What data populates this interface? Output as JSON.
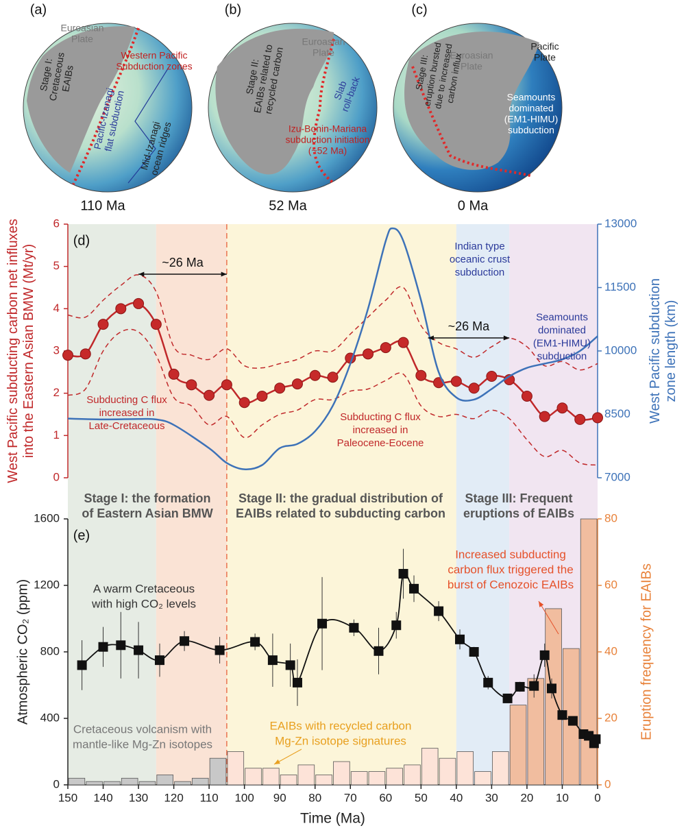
{
  "globes": [
    {
      "panel": "(a)",
      "age": "110 Ma",
      "labels": [
        [
          "Euroasian",
          "Plate"
        ],
        [
          "Stage I:",
          "Cretaceous",
          "EAIBs"
        ],
        [
          "Western Pacific",
          "Subduction zones"
        ],
        [
          "Pacific-Izanagi",
          "flat subduction"
        ],
        [
          "Mid-Izanagi",
          "ocean ridges"
        ]
      ]
    },
    {
      "panel": "(b)",
      "age": "52 Ma",
      "labels": [
        [
          "Euroasian",
          "Plate"
        ],
        [
          "Stage II:",
          "EAIBs related to",
          "recycled carbon"
        ],
        [
          "Slab",
          "roll-back"
        ],
        [
          "Izu-Bonin-Mariana",
          "subduction initiation",
          "(~52 Ma)"
        ]
      ]
    },
    {
      "panel": "(c)",
      "age": "0 Ma",
      "labels": [
        [
          "Euroasian",
          "Plate"
        ],
        [
          "Stage III:",
          "eruption bursted",
          "due to increased",
          "carbon influx"
        ],
        [
          "Pacific",
          "Plate"
        ],
        [
          "Seamounts",
          "dominated",
          "(EM1-HIMU)",
          "subduction"
        ]
      ]
    }
  ],
  "stage_labels": [
    [
      "Stage I: the formation",
      "of Eastern Asian BMW"
    ],
    [
      "Stage II: the gradual distribution of",
      "EAIBs related to subducting carbon"
    ],
    [
      "Stage III: Frequent",
      "eruptions of EAIBs"
    ]
  ],
  "chart_data": [
    {
      "type": "line",
      "label": "(d)",
      "y_label": [
        "West Pacific subducting carbon net influxes",
        "into the Eastern Asian BMW (Mt/yr)"
      ],
      "y2_label": [
        "West Pacific subduction",
        "zone length (km)"
      ],
      "xlim": [
        150,
        0
      ],
      "ylim": [
        0,
        6
      ],
      "yticks": [
        0,
        1,
        2,
        3,
        4,
        5,
        6
      ],
      "ycolor": "#c0282a",
      "y2lim": [
        7000,
        13000
      ],
      "y2ticks": [
        7000,
        8500,
        10000,
        11500,
        13000
      ],
      "y2color": "#3d72b8",
      "stage_bounds": [
        150,
        125,
        105,
        40,
        25,
        0
      ],
      "stage_colors": [
        "#e2e9df",
        "#f9dece",
        "#fbf3d2",
        "#dde9f5",
        "#efe0ef"
      ],
      "divider": 105,
      "x": [
        150,
        145,
        140,
        135,
        130,
        125,
        120,
        115,
        110,
        105,
        100,
        95,
        90,
        85,
        80,
        75,
        70,
        65,
        60,
        55,
        50,
        45,
        40,
        35,
        30,
        25,
        20,
        15,
        10,
        5,
        0
      ],
      "series": [
        {
          "color": "#c0282a",
          "style": "markers",
          "values": [
            2.9,
            2.93,
            3.63,
            4.0,
            4.12,
            3.63,
            2.45,
            2.2,
            1.95,
            2.2,
            1.78,
            1.93,
            2.12,
            2.22,
            2.42,
            2.38,
            2.83,
            2.93,
            3.08,
            3.2,
            2.42,
            2.25,
            2.28,
            2.12,
            2.4,
            2.32,
            1.93,
            1.45,
            1.65,
            1.38,
            1.42
          ]
        },
        {
          "color": "#c0282a",
          "style": "dashed",
          "values": [
            3.85,
            3.8,
            4.2,
            4.55,
            4.8,
            4.4,
            3.1,
            2.9,
            2.8,
            3.05,
            2.65,
            2.6,
            2.7,
            2.8,
            3.0,
            3.0,
            3.4,
            3.8,
            4.2,
            4.5,
            3.6,
            3.2,
            3.05,
            2.85,
            3.1,
            3.3,
            3.1,
            2.65,
            2.75,
            2.55,
            2.7
          ]
        },
        {
          "color": "#c0282a",
          "style": "dashed",
          "values": [
            1.95,
            2.1,
            3.0,
            3.45,
            3.45,
            2.9,
            1.9,
            1.7,
            1.25,
            1.45,
            0.95,
            1.25,
            1.5,
            1.6,
            1.85,
            1.85,
            2.05,
            2.1,
            2.3,
            2.45,
            1.7,
            1.45,
            1.5,
            1.4,
            1.6,
            1.4,
            0.9,
            0.5,
            0.65,
            0.35,
            0.3
          ]
        },
        {
          "color": "#3d72b8",
          "style": "solid",
          "axis": "y2",
          "x": [
            150,
            140,
            130,
            125,
            120,
            110,
            105,
            100,
            95,
            90,
            85,
            80,
            75,
            70,
            65,
            60,
            58,
            55,
            50,
            45,
            40,
            35,
            30,
            25,
            20,
            15,
            10,
            5,
            0
          ],
          "values": [
            8400,
            8380,
            8390,
            8380,
            8250,
            7700,
            7350,
            7200,
            7300,
            7700,
            7800,
            8100,
            8700,
            9700,
            11000,
            12600,
            12900,
            12600,
            11200,
            9500,
            8900,
            8850,
            9100,
            9400,
            9600,
            9700,
            9800,
            10000,
            10350
          ]
        }
      ],
      "spans": [
        {
          "label": "~26 Ma",
          "from": 130,
          "to": 105
        },
        {
          "label": "~26 Ma",
          "from": 48,
          "to": 25
        }
      ],
      "annotations": [
        [
          "Subducting C flux",
          "increased in",
          "Late-Cretaceous"
        ],
        [
          "Subducting C flux",
          "increased in",
          "Paleocene-Eocene"
        ],
        [
          "Indian type",
          "oceanic crust",
          "subduction"
        ],
        [
          "Seamounts",
          "dominated",
          "(EM1-HIMU)",
          "subduction"
        ]
      ]
    },
    {
      "type": "combo",
      "label": "(e)",
      "y_label": [
        "Atmospheric CO₂ (ppm)"
      ],
      "y2_label": [
        "Eruption frequency for EAIBs"
      ],
      "x_label": "Time (Ma)",
      "xlim": [
        150,
        0
      ],
      "xticks": [
        150,
        140,
        130,
        120,
        110,
        100,
        90,
        80,
        70,
        60,
        50,
        40,
        30,
        20,
        10,
        0
      ],
      "ylim": [
        0,
        1600
      ],
      "yticks": [
        0,
        400,
        800,
        1200,
        1600
      ],
      "ycolor": "#222222",
      "y2lim": [
        0,
        80
      ],
      "y2ticks": [
        0,
        20,
        40,
        60,
        80
      ],
      "y2color": "#e8823a",
      "bins": [
        150,
        145,
        140,
        135,
        130,
        125,
        120,
        115,
        110,
        105,
        100,
        95,
        90,
        85,
        80,
        75,
        70,
        65,
        60,
        55,
        50,
        45,
        40,
        35,
        30,
        25,
        20,
        15,
        10,
        5,
        0
      ],
      "bar_values": [
        2,
        1,
        1,
        2,
        1,
        3,
        1,
        2,
        8,
        10,
        5,
        5,
        3,
        6,
        3,
        7,
        4,
        4,
        5,
        6,
        11,
        8,
        10,
        4,
        10,
        24,
        32,
        53,
        41,
        80
      ],
      "bar_colors": [
        "#c8c8c8",
        "#c8c8c8",
        "#c8c8c8",
        "#c8c8c8",
        "#c8c8c8",
        "#c8c8c8",
        "#c8c8c8",
        "#c8c8c8",
        "#c8c8c8",
        "#fde3d8",
        "#fde3d8",
        "#fde3d8",
        "#fde3d8",
        "#fde3d8",
        "#fde3d8",
        "#fde3d8",
        "#fde3d8",
        "#fde3d8",
        "#fde3d8",
        "#fde3d8",
        "#fde3d8",
        "#fde3d8",
        "#fde3d8",
        "#fde3d8",
        "#fde3d8",
        "#f1bd9f",
        "#f1bd9f",
        "#f1bd9f",
        "#f1bd9f",
        "#f1bd9f"
      ],
      "series": [
        {
          "color": "#111111",
          "x": [
            146,
            140,
            135,
            130,
            124,
            117,
            107,
            97,
            92,
            87,
            85,
            78,
            69,
            62,
            57,
            55,
            52,
            45,
            39,
            35,
            31,
            25.5,
            22,
            18,
            15,
            13,
            10,
            7,
            4,
            2.5,
            1,
            0.5
          ],
          "values": [
            720,
            830,
            840,
            810,
            750,
            865,
            810,
            860,
            750,
            720,
            615,
            970,
            945,
            805,
            960,
            1270,
            1180,
            1045,
            875,
            800,
            615,
            520,
            590,
            595,
            780,
            580,
            420,
            385,
            305,
            295,
            250,
            275
          ],
          "errors": [
            150,
            120,
            200,
            170,
            100,
            60,
            80,
            50,
            160,
            130,
            140,
            280,
            50,
            140,
            80,
            150,
            80,
            60,
            60,
            30,
            40,
            20,
            30,
            70,
            70,
            60,
            30,
            20,
            20,
            20,
            10,
            20
          ]
        }
      ],
      "annotations": [
        [
          "A warm Cretaceous",
          "with high CO₂ levels"
        ],
        [
          "Increased subducting",
          "carbon flux triggered the",
          "burst of Cenozoic EAIBs"
        ],
        [
          "Cretaceous volcanism with",
          "mantle-like Mg-Zn isotopes"
        ],
        [
          "EAIBs with recycled carbon",
          "Mg-Zn isotope signatures"
        ]
      ]
    }
  ]
}
